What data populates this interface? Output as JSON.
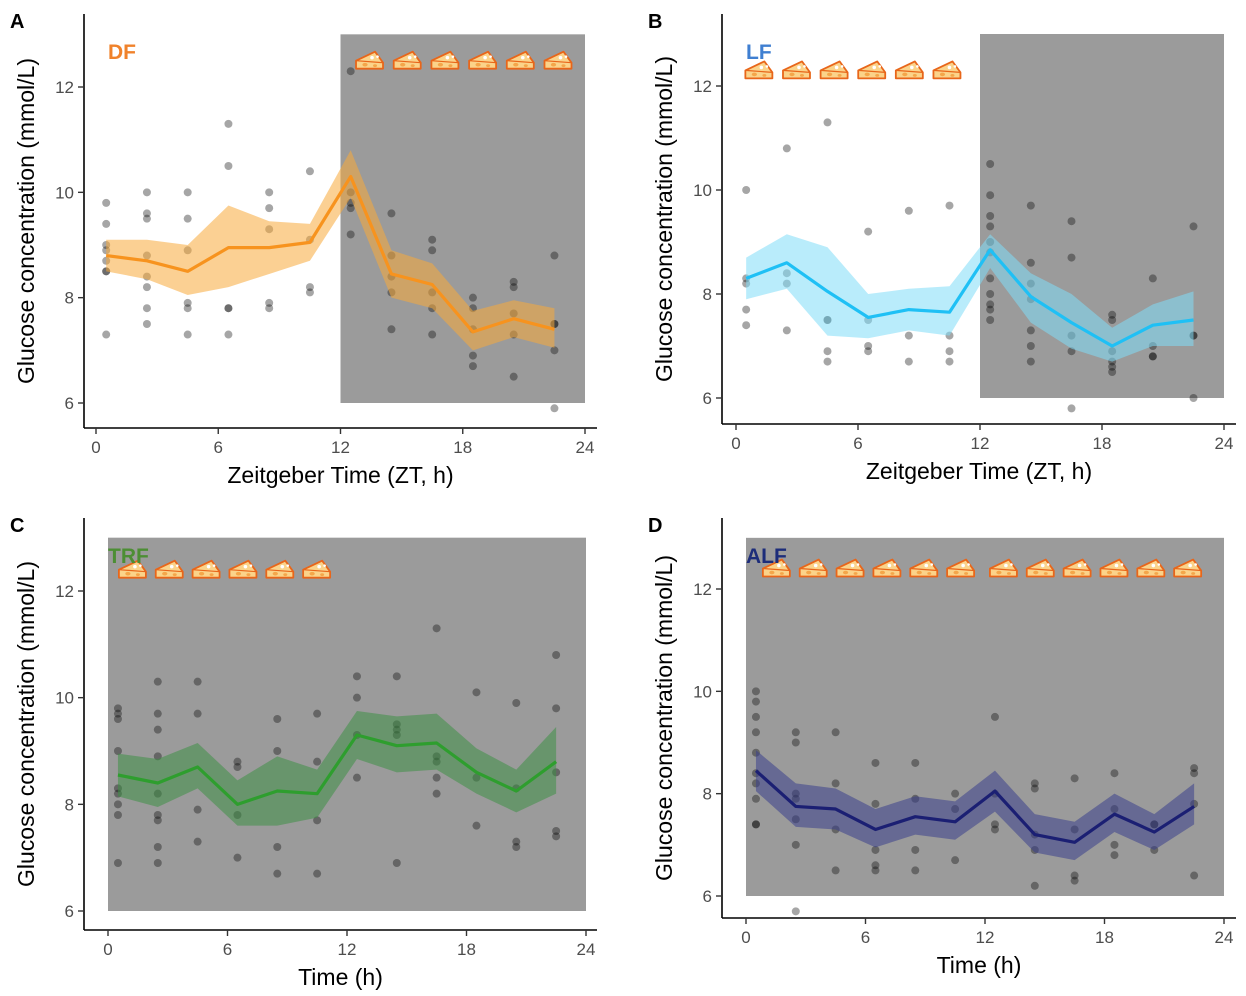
{
  "chart_data": [
    {
      "type": "line",
      "panel_label": "A",
      "title": "DF",
      "title_color": "#F0822B",
      "line_color": "#F7931E",
      "ribbon_color": "#F7A93B",
      "xlabel": "Zeitgeber Time (ZT, h)",
      "ylabel": "Glucose concentration (mmol/L)",
      "xlim": [
        0,
        24
      ],
      "ylim": [
        6,
        13
      ],
      "xticks": [
        "0",
        "6",
        "12",
        "18",
        "24"
      ],
      "yticks": [
        "6",
        "8",
        "10",
        "12"
      ],
      "grid": false,
      "shade": [
        12,
        24
      ],
      "food_icons": {
        "x_start": 13.4,
        "y": 12.5,
        "step": 1.85,
        "count": 6
      },
      "series": [
        {
          "x": [
            0.5,
            2.5,
            4.5,
            6.5,
            8.5,
            10.5,
            12.5,
            14.5,
            16.5,
            18.5,
            20.5,
            22.5
          ],
          "values": [
            8.8,
            8.7,
            8.5,
            8.95,
            8.95,
            9.05,
            10.3,
            8.45,
            8.25,
            7.35,
            7.6,
            7.4
          ],
          "lower": [
            8.5,
            8.35,
            8.05,
            8.2,
            8.45,
            8.7,
            9.9,
            8.0,
            7.8,
            7.0,
            7.25,
            7.05
          ],
          "upper": [
            9.1,
            9.1,
            9.0,
            9.75,
            9.45,
            9.4,
            10.8,
            8.9,
            8.65,
            7.75,
            7.95,
            7.8
          ]
        }
      ],
      "points": {
        "x": [
          0.5,
          0.5,
          0.5,
          0.5,
          0.5,
          0.5,
          0.5,
          0.5,
          2.5,
          2.5,
          2.5,
          2.5,
          2.5,
          2.5,
          2.5,
          2.5,
          4.5,
          4.5,
          4.5,
          4.5,
          4.5,
          4.5,
          6.5,
          6.5,
          6.5,
          6.5,
          6.5,
          8.5,
          8.5,
          8.5,
          8.5,
          8.5,
          10.5,
          10.5,
          10.5,
          10.5,
          12.5,
          12.5,
          12.5,
          12.5,
          12.5,
          14.5,
          14.5,
          14.5,
          14.5,
          14.5,
          16.5,
          16.5,
          16.5,
          16.5,
          16.5,
          18.5,
          18.5,
          18.5,
          18.5,
          18.5,
          20.5,
          20.5,
          20.5,
          20.5,
          20.5,
          22.5,
          22.5,
          22.5,
          22.5,
          22.5
        ],
        "y": [
          9.8,
          9.4,
          9.0,
          8.9,
          8.7,
          8.5,
          8.5,
          7.3,
          10.0,
          9.6,
          9.5,
          8.8,
          8.4,
          8.2,
          7.8,
          7.5,
          10.0,
          9.5,
          8.9,
          7.9,
          7.8,
          7.3,
          11.3,
          10.5,
          7.8,
          7.8,
          7.3,
          10.0,
          9.7,
          9.3,
          7.9,
          7.8,
          10.4,
          9.1,
          8.2,
          8.1,
          12.3,
          10.0,
          9.8,
          9.7,
          9.2,
          9.6,
          8.8,
          8.4,
          8.1,
          7.4,
          9.1,
          8.9,
          8.1,
          7.8,
          7.3,
          8.0,
          7.8,
          7.4,
          6.9,
          6.7,
          8.3,
          8.2,
          7.7,
          7.3,
          6.5,
          8.8,
          7.5,
          7.5,
          7.0,
          5.9
        ]
      }
    },
    {
      "type": "line",
      "panel_label": "B",
      "title": "LF",
      "title_color": "#3F7FD1",
      "line_color": "#1FC0F5",
      "ribbon_color": "#7FDDF8",
      "xlabel": "Zeitgeber Time (ZT, h)",
      "ylabel": "Glucose concentration (mmol/L)",
      "xlim": [
        0,
        24
      ],
      "ylim": [
        6,
        13
      ],
      "xticks": [
        "0",
        "6",
        "12",
        "18",
        "24"
      ],
      "yticks": [
        "6",
        "8",
        "10",
        "12"
      ],
      "grid": false,
      "shade": [
        12,
        24
      ],
      "food_icons": {
        "x_start": 1.1,
        "y": 12.3,
        "step": 1.85,
        "count": 6
      },
      "series": [
        {
          "x": [
            0.5,
            2.5,
            4.5,
            6.5,
            8.5,
            10.5,
            12.5,
            14.5,
            16.5,
            18.5,
            20.5,
            22.5
          ],
          "values": [
            8.3,
            8.6,
            8.05,
            7.55,
            7.7,
            7.65,
            8.85,
            7.95,
            7.45,
            7.0,
            7.4,
            7.5
          ],
          "lower": [
            7.9,
            8.1,
            7.2,
            7.15,
            7.3,
            7.2,
            8.5,
            7.45,
            6.95,
            6.7,
            7.0,
            7.0
          ],
          "upper": [
            8.7,
            9.15,
            8.9,
            8.0,
            8.1,
            8.15,
            9.15,
            8.4,
            8.0,
            7.35,
            7.8,
            8.05
          ]
        }
      ],
      "points": {
        "x": [
          0.5,
          0.5,
          0.5,
          0.5,
          0.5,
          2.5,
          2.5,
          2.5,
          2.5,
          4.5,
          4.5,
          4.5,
          4.5,
          4.5,
          6.5,
          6.5,
          6.5,
          6.5,
          8.5,
          8.5,
          8.5,
          10.5,
          10.5,
          10.5,
          10.5,
          12.5,
          12.5,
          12.5,
          12.5,
          12.5,
          12.5,
          12.5,
          12.5,
          12.5,
          12.5,
          12.5,
          14.5,
          14.5,
          14.5,
          14.5,
          14.5,
          14.5,
          14.5,
          16.5,
          16.5,
          16.5,
          16.5,
          16.5,
          18.5,
          18.5,
          18.5,
          18.5,
          18.5,
          18.5,
          20.5,
          20.5,
          20.5,
          20.5,
          22.5,
          22.5,
          22.5,
          22.5
        ],
        "y": [
          10.0,
          8.3,
          8.2,
          7.7,
          7.4,
          10.8,
          8.4,
          8.2,
          7.3,
          11.3,
          7.5,
          7.5,
          6.9,
          6.7,
          9.2,
          7.5,
          7.0,
          6.9,
          9.6,
          7.2,
          6.7,
          9.7,
          7.2,
          6.9,
          6.7,
          10.5,
          9.9,
          9.5,
          9.3,
          9.0,
          8.8,
          8.3,
          8.0,
          7.8,
          7.7,
          7.5,
          9.7,
          8.6,
          8.2,
          7.9,
          7.3,
          7.0,
          6.7,
          9.4,
          8.7,
          7.2,
          6.9,
          5.8,
          7.6,
          7.5,
          6.9,
          6.7,
          6.6,
          6.5,
          8.3,
          7.0,
          6.8,
          6.8,
          9.3,
          7.2,
          7.2,
          6.0
        ]
      }
    },
    {
      "type": "line",
      "panel_label": "C",
      "title": "TRF",
      "title_color": "#4C8E34",
      "line_color": "#2E9E2E",
      "ribbon_color": "#3E8F45",
      "xlabel": "Time (h)",
      "ylabel": "Glucose concentration (mmol/L)",
      "xlim": [
        0,
        24
      ],
      "ylim": [
        6,
        13
      ],
      "xticks": [
        "0",
        "6",
        "12",
        "18",
        "24"
      ],
      "yticks": [
        "6",
        "8",
        "10",
        "12"
      ],
      "grid": false,
      "shade": [
        0,
        24
      ],
      "food_icons": {
        "x_start": 1.2,
        "y": 12.4,
        "step": 1.85,
        "count": 6
      },
      "series": [
        {
          "x": [
            0.5,
            2.5,
            4.5,
            6.5,
            8.5,
            10.5,
            12.5,
            14.5,
            16.5,
            18.5,
            20.5,
            22.5
          ],
          "values": [
            8.55,
            8.4,
            8.7,
            8.0,
            8.25,
            8.2,
            9.3,
            9.1,
            9.15,
            8.6,
            8.25,
            8.8
          ],
          "lower": [
            8.15,
            7.95,
            8.3,
            7.6,
            7.6,
            7.75,
            8.85,
            8.6,
            8.65,
            8.2,
            7.85,
            8.2
          ],
          "upper": [
            8.95,
            8.85,
            9.15,
            8.45,
            8.9,
            8.65,
            9.75,
            9.65,
            9.7,
            9.05,
            8.65,
            9.45
          ]
        }
      ],
      "points": {
        "x": [
          0.5,
          0.5,
          0.5,
          0.5,
          0.5,
          0.5,
          0.5,
          0.5,
          0.5,
          2.5,
          2.5,
          2.5,
          2.5,
          2.5,
          2.5,
          2.5,
          2.5,
          2.5,
          4.5,
          4.5,
          4.5,
          4.5,
          6.5,
          6.5,
          6.5,
          6.5,
          8.5,
          8.5,
          8.5,
          8.5,
          10.5,
          10.5,
          10.5,
          10.5,
          12.5,
          12.5,
          12.5,
          12.5,
          14.5,
          14.5,
          14.5,
          14.5,
          14.5,
          16.5,
          16.5,
          16.5,
          16.5,
          16.5,
          18.5,
          18.5,
          18.5,
          20.5,
          20.5,
          20.5,
          20.5,
          22.5,
          22.5,
          22.5,
          22.5,
          22.5
        ],
        "y": [
          9.8,
          9.7,
          9.6,
          9.0,
          8.3,
          8.2,
          8.0,
          7.8,
          6.9,
          10.3,
          9.7,
          9.4,
          8.9,
          8.2,
          7.8,
          7.7,
          7.2,
          6.9,
          10.3,
          9.7,
          7.9,
          7.3,
          8.8,
          8.7,
          7.8,
          7.0,
          9.6,
          9.0,
          7.2,
          6.7,
          9.7,
          8.8,
          7.7,
          6.7,
          10.4,
          10.0,
          9.3,
          8.5,
          10.4,
          9.5,
          9.4,
          9.3,
          6.9,
          11.3,
          8.9,
          8.8,
          8.5,
          8.2,
          10.1,
          8.5,
          7.6,
          9.9,
          8.3,
          7.3,
          7.2,
          10.8,
          9.8,
          8.6,
          7.5,
          7.4
        ]
      }
    },
    {
      "type": "line",
      "panel_label": "D",
      "title": "ALF",
      "title_color": "#1D2D7A",
      "line_color": "#1B1F73",
      "ribbon_color": "#3B3F8C",
      "xlabel": "Time (h)",
      "ylabel": "Glucose concentration (mmol/L)",
      "xlim": [
        0,
        24
      ],
      "ylim": [
        6,
        13
      ],
      "xticks": [
        "0",
        "6",
        "12",
        "18",
        "24"
      ],
      "yticks": [
        "6",
        "8",
        "10",
        "12"
      ],
      "grid": false,
      "shade": [
        0,
        24
      ],
      "food_icons": {
        "x_start": 1.5,
        "y": 12.4,
        "step": 1.85,
        "count": 12
      },
      "series": [
        {
          "x": [
            0.5,
            2.5,
            4.5,
            6.5,
            8.5,
            10.5,
            12.5,
            14.5,
            16.5,
            18.5,
            20.5,
            22.5
          ],
          "values": [
            8.45,
            7.75,
            7.7,
            7.3,
            7.55,
            7.45,
            8.05,
            7.2,
            7.05,
            7.6,
            7.25,
            7.75
          ],
          "lower": [
            8.05,
            7.35,
            7.3,
            6.95,
            7.2,
            7.1,
            7.65,
            6.85,
            6.7,
            7.25,
            6.9,
            7.4
          ],
          "upper": [
            8.85,
            8.2,
            8.1,
            7.7,
            7.95,
            7.85,
            8.45,
            7.6,
            7.45,
            8.0,
            7.6,
            8.2
          ]
        }
      ],
      "points": {
        "x": [
          0.5,
          0.5,
          0.5,
          0.5,
          0.5,
          0.5,
          0.5,
          0.5,
          0.5,
          0.5,
          2.5,
          2.5,
          2.5,
          2.5,
          2.5,
          2.5,
          2.5,
          4.5,
          4.5,
          4.5,
          4.5,
          6.5,
          6.5,
          6.5,
          6.5,
          6.5,
          8.5,
          8.5,
          8.5,
          8.5,
          10.5,
          10.5,
          10.5,
          12.5,
          12.5,
          12.5,
          12.5,
          14.5,
          14.5,
          14.5,
          14.5,
          14.5,
          16.5,
          16.5,
          16.5,
          16.5,
          18.5,
          18.5,
          18.5,
          18.5,
          20.5,
          20.5,
          20.5,
          22.5,
          22.5,
          22.5,
          22.5
        ],
        "y": [
          10.0,
          9.8,
          9.5,
          9.2,
          8.8,
          8.4,
          8.2,
          7.9,
          7.4,
          7.4,
          9.2,
          9.0,
          8.0,
          7.9,
          7.5,
          7.0,
          5.7,
          9.2,
          8.2,
          7.3,
          6.5,
          8.6,
          7.8,
          6.9,
          6.6,
          6.5,
          8.6,
          7.9,
          6.9,
          6.5,
          8.0,
          7.7,
          6.7,
          9.5,
          8.0,
          7.4,
          7.3,
          8.2,
          8.1,
          7.2,
          6.9,
          6.2,
          8.3,
          7.3,
          6.4,
          6.3,
          8.4,
          7.7,
          7.0,
          6.8,
          7.4,
          7.4,
          6.9,
          8.5,
          8.4,
          7.8,
          6.4
        ]
      }
    }
  ]
}
